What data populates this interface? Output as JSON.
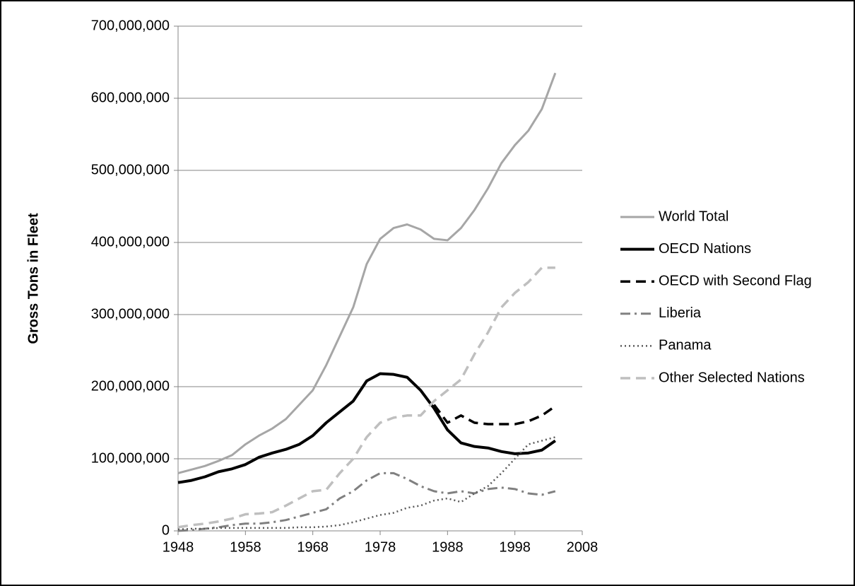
{
  "chart_data": {
    "type": "line",
    "y_label": "Gross Tons in Fleet",
    "x": [
      1948,
      1950,
      1952,
      1954,
      1956,
      1958,
      1960,
      1962,
      1964,
      1966,
      1968,
      1970,
      1972,
      1974,
      1976,
      1978,
      1980,
      1982,
      1984,
      1986,
      1988,
      1990,
      1992,
      1994,
      1996,
      1998,
      2000,
      2002,
      2004
    ],
    "series": [
      {
        "name": "World Total",
        "color": "#a6a6a6",
        "dash": "solid",
        "values": [
          80000000,
          85000000,
          90000000,
          97000000,
          105000000,
          120000000,
          132000000,
          142000000,
          155000000,
          175000000,
          195000000,
          230000000,
          270000000,
          310000000,
          370000000,
          405000000,
          420000000,
          425000000,
          418000000,
          405000000,
          403000000,
          420000000,
          445000000,
          475000000,
          510000000,
          535000000,
          555000000,
          585000000,
          635000000
        ]
      },
      {
        "name": "OECD Nations",
        "color": "#000000",
        "dash": "solid-thick",
        "values": [
          67000000,
          70000000,
          75000000,
          82000000,
          86000000,
          92000000,
          102000000,
          108000000,
          113000000,
          120000000,
          132000000,
          150000000,
          165000000,
          180000000,
          208000000,
          218000000,
          217000000,
          213000000,
          195000000,
          170000000,
          140000000,
          122000000,
          117000000,
          115000000,
          110000000,
          107000000,
          108000000,
          112000000,
          125000000
        ]
      },
      {
        "name": "OECD with Second Flag",
        "color": "#000000",
        "dash": "dashed",
        "values": [
          null,
          null,
          null,
          null,
          null,
          null,
          null,
          null,
          null,
          null,
          null,
          null,
          null,
          null,
          null,
          null,
          null,
          null,
          null,
          175000000,
          150000000,
          160000000,
          150000000,
          148000000,
          148000000,
          148000000,
          152000000,
          160000000,
          173000000
        ]
      },
      {
        "name": "Liberia",
        "color": "#808080",
        "dash": "dash-dot",
        "values": [
          0,
          1000000,
          3000000,
          5000000,
          8000000,
          10000000,
          10000000,
          12000000,
          15000000,
          20000000,
          25000000,
          30000000,
          45000000,
          55000000,
          70000000,
          80000000,
          80000000,
          72000000,
          62000000,
          55000000,
          52000000,
          55000000,
          52000000,
          58000000,
          60000000,
          58000000,
          52000000,
          50000000,
          55000000
        ]
      },
      {
        "name": "Panama",
        "color": "#595959",
        "dash": "dotted",
        "values": [
          2000000,
          3000000,
          3000000,
          4000000,
          4000000,
          4000000,
          4000000,
          4000000,
          4000000,
          5000000,
          5000000,
          6000000,
          8000000,
          12000000,
          17000000,
          22000000,
          25000000,
          32000000,
          35000000,
          42000000,
          45000000,
          40000000,
          52000000,
          62000000,
          80000000,
          100000000,
          120000000,
          125000000,
          130000000
        ]
      },
      {
        "name": "Other Selected Nations",
        "color": "#bfbfbf",
        "dash": "dashed",
        "values": [
          5000000,
          8000000,
          10000000,
          13000000,
          17000000,
          23000000,
          24000000,
          26000000,
          35000000,
          45000000,
          55000000,
          57000000,
          80000000,
          100000000,
          130000000,
          150000000,
          157000000,
          160000000,
          160000000,
          180000000,
          195000000,
          210000000,
          245000000,
          275000000,
          310000000,
          330000000,
          345000000,
          365000000,
          365000000
        ]
      }
    ],
    "xlim": [
      1948,
      2008
    ],
    "xticks": [
      1948,
      1958,
      1968,
      1978,
      1988,
      1998,
      2008
    ],
    "ylim": [
      0,
      700000000
    ],
    "yticks": [
      0,
      {
        "value": 100000000,
        "label": "100,000,000"
      },
      {
        "value": 200000000,
        "label": "200,000,000"
      },
      {
        "value": 300000000,
        "label": "300,000,000"
      },
      {
        "value": 400000000,
        "label": "400,000,000"
      },
      {
        "value": 500000000,
        "label": "500,000,000"
      },
      {
        "value": 600000000,
        "label": "600,000,000"
      },
      {
        "value": 700000000,
        "label": "700,000,000"
      }
    ],
    "grid": true,
    "legend": "right"
  }
}
